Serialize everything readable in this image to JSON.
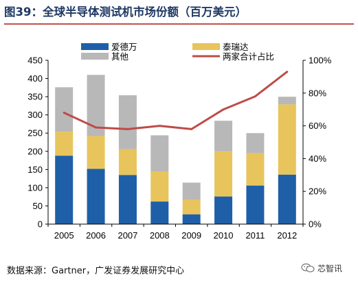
{
  "title": "图39：全球半导体测试机市场份额（百万美元）",
  "source": "数据来源：Gartner，广发证券发展研究中心",
  "watermark": {
    "text": "芯智讯",
    "icon": "wechat-icon"
  },
  "colors": {
    "advantest": "#1f5fa8",
    "teradyne": "#e8c45c",
    "others": "#b8b8b8",
    "share_line": "#be4b48",
    "title": "#1f3864",
    "title_rule": "#c0504d"
  },
  "chart_data": {
    "type": "bar",
    "stacked": true,
    "categories": [
      "2005",
      "2006",
      "2007",
      "2008",
      "2009",
      "2010",
      "2011",
      "2012"
    ],
    "series": [
      {
        "name": "爱德万",
        "values": [
          188,
          152,
          135,
          62,
          27,
          76,
          106,
          136
        ],
        "color": "#1f5fa8"
      },
      {
        "name": "泰瑞达",
        "values": [
          66,
          90,
          71,
          83,
          40,
          124,
          89,
          193
        ],
        "color": "#e8c45c"
      },
      {
        "name": "其他",
        "values": [
          122,
          168,
          148,
          99,
          47,
          84,
          55,
          21
        ],
        "color": "#b8b8b8"
      }
    ],
    "line_series": {
      "name": "两家合计占比",
      "axis": "right",
      "values": [
        68,
        59,
        58,
        60,
        58,
        70,
        78,
        93
      ],
      "color": "#be4b48"
    },
    "ylim": [
      0,
      450
    ],
    "yticks": [
      "0",
      "50",
      "100",
      "150",
      "200",
      "250",
      "300",
      "350",
      "400",
      "450"
    ],
    "y2lim": [
      0,
      100
    ],
    "y2ticks": [
      "0%",
      "20%",
      "40%",
      "60%",
      "80%",
      "100%"
    ],
    "legend_position": "top",
    "grid": false
  }
}
